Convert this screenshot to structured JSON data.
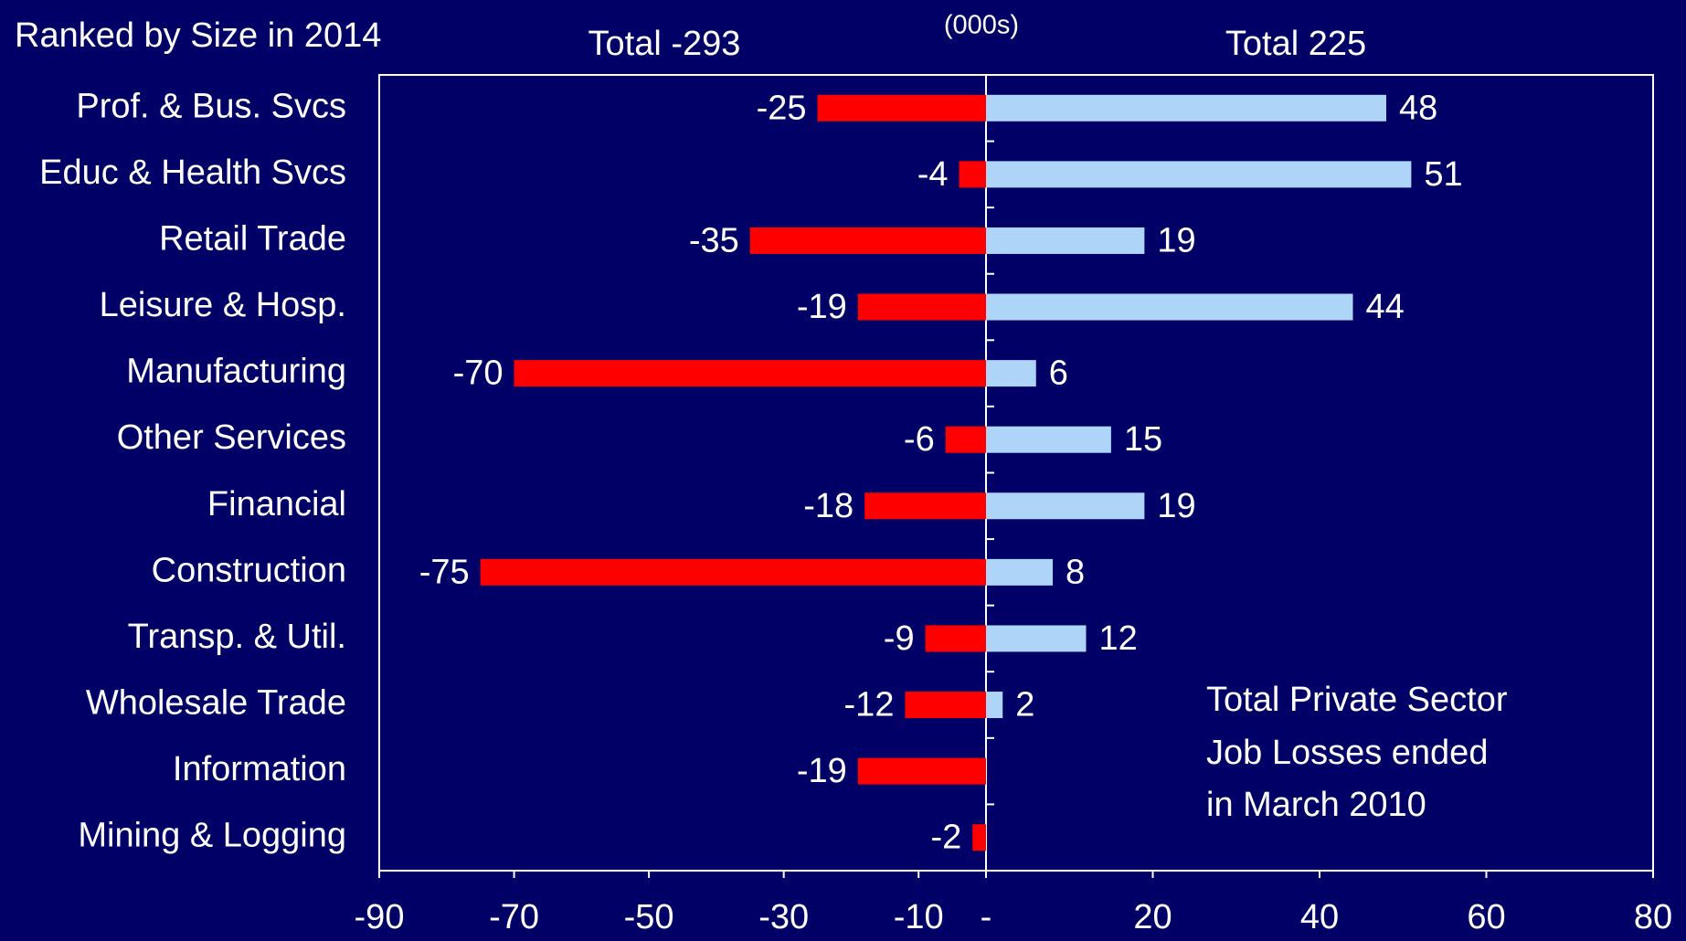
{
  "chart_data": {
    "type": "diverging-bar",
    "title": "Ranked by Size in 2014",
    "subtitle": "(000s)",
    "annotation": [
      "Total Private Sector",
      "Job Losses ended",
      "in March 2010"
    ],
    "categories": [
      "Prof. & Bus. Svcs",
      "Educ & Health Svcs",
      "Retail Trade",
      "Leisure & Hosp.",
      "Manufacturing",
      "Other Services",
      "Financial",
      "Construction",
      "Transp. & Util.",
      "Wholesale Trade",
      "Information",
      "Mining & Logging"
    ],
    "series": [
      {
        "name": "Total -293",
        "color": "#ff0000",
        "values": [
          -25,
          -4,
          -35,
          -19,
          -70,
          -6,
          -18,
          -75,
          -9,
          -12,
          -19,
          -2
        ]
      },
      {
        "name": "Total 225",
        "color": "#aed4f7",
        "axis": "x2",
        "values": [
          48,
          51,
          19,
          44,
          6,
          15,
          19,
          8,
          12,
          2,
          null,
          null
        ]
      }
    ],
    "xlim": [
      -90,
      0
    ],
    "xticks": [
      -90,
      -70,
      -50,
      -30,
      -10,
      {
        "value": 0,
        "label": "-"
      }
    ],
    "x2lim": [
      0,
      80
    ],
    "x2ticks": [
      20,
      40,
      60,
      80
    ],
    "background": "#000066"
  }
}
